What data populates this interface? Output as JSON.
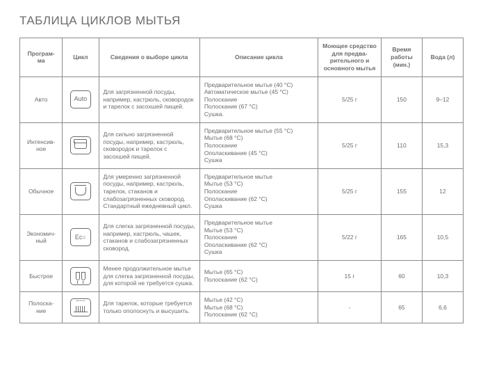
{
  "title": "ТАБЛИЦА ЦИКЛОВ МЫТЬЯ",
  "headers": {
    "program": "Програм-\nма",
    "cycle": "Цикл",
    "info": "Сведения о выборе цикла",
    "desc": "Описание цикла",
    "detergent": "Моющее средство для предва-\nрительного и основного мытья",
    "time": "Время работы (мин.)",
    "water": "Вода (л)"
  },
  "rows": [
    {
      "program": "Авто",
      "icon": "auto",
      "info": "Для загрязненной посуды, например, кастрюль, сковородок и тарелок с засохшей пищей.",
      "desc": "Предварительное мытье (40 °C)\nАвтоматическое мытье (45 °C)\nПолоскание\nПолоскание (67 °C)\nСушка.",
      "detergent": "5/25 г",
      "time": "150",
      "water": "9–12"
    },
    {
      "program": "Интенсив-\nное",
      "icon": "intensive",
      "info": "Для сильно загрязненной посуды, например, кастрюль, сковородок и тарелок с засохшей пищей.",
      "desc": "Предварительное мытье (55 °C)\nМытье (68 °C)\nПолоскание\nОполаскивание (45 °C)\nСушка",
      "detergent": "5/25 г",
      "time": "110",
      "water": "15,3"
    },
    {
      "program": "Обычное",
      "icon": "normal",
      "info": "Для умеренно загрязненной посуды, например, кастрюль, тарелок, стаканов и слабозагрязненных сковород. Стандартный ежедневный цикл.",
      "desc": "Предварительное мытье\nМытье (53 °C)\nПолоскание\nОполаскивание (62 °C)\nСушка",
      "detergent": "5/25 г",
      "time": "155",
      "water": "12"
    },
    {
      "program": "Экономич-\nный",
      "icon": "eco",
      "info": "Для слегка загрязненной посуды, например, кастрюль, чашек, стаканов и слабозагрязненных сковород.",
      "desc": "Предварительное мытье\nМытье (53 °C)\nПолоскание\nОполаскивание (62 °C)\nСушка",
      "detergent": "5/22 г",
      "time": "165",
      "water": "10,5"
    },
    {
      "program": "Быстрое",
      "icon": "quick",
      "info": "Менее продолжительное мытье для слегка загрязненной посуды, для которой не требуется сушка.",
      "desc": "Мытье (65 °C)\nПолоскание (62 °C)",
      "detergent": "15 г",
      "time": "60",
      "water": "10,3"
    },
    {
      "program": "Полоска-\nние",
      "icon": "rinse",
      "info": "Для тарелок, которые требуется только ополоснуть и высушить.",
      "desc": "Мытье (42 °C)\nМытье (68 °C)\nПолоскание (62 °C)",
      "detergent": "-",
      "time": "65",
      "water": "6,6"
    }
  ]
}
